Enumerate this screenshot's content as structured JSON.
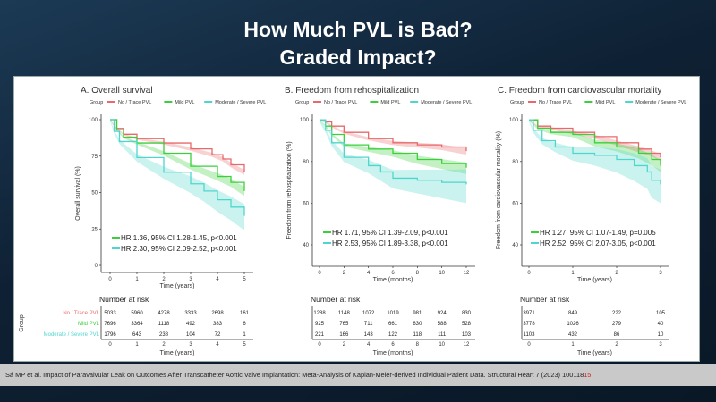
{
  "slide": {
    "title_line1": "How Much PVL is Bad?",
    "title_line2": "Graded Impact?",
    "citation": "Sá MP et al. Impact of Paravalvular Leak on Outcomes After Transcatheter Aortic Valve Implantation: Meta-Analysis of Kaplan-Meier-derived Individual Patient Data. Structural Heart 7 (2023) 100118",
    "citation_red": "15"
  },
  "colors": {
    "no_trace": "#e8696b",
    "mild": "#3ccf3c",
    "moderate_severe": "#4fd6cc"
  },
  "chart_data": [
    {
      "type": "line",
      "title": "A. Overall survival",
      "xlabel": "Time (years)",
      "ylabel": "Overall survival (%)",
      "xlim": [
        0,
        5
      ],
      "ylim": [
        0,
        100
      ],
      "xticks": [
        "0",
        "1",
        "2",
        "3",
        "4",
        "5"
      ],
      "yticks": [
        "0",
        "25",
        "50",
        "75",
        "100"
      ],
      "legend_title": "Group",
      "legend_position": "top",
      "series": [
        {
          "name": "No / Trace PVL",
          "points": [
            [
              0,
              100
            ],
            [
              0.25,
              94
            ],
            [
              0.5,
              90
            ],
            [
              1,
              87
            ],
            [
              2,
              84
            ],
            [
              3,
              80
            ],
            [
              3.8,
              76
            ],
            [
              4.2,
              73
            ],
            [
              4.5,
              69
            ],
            [
              5,
              64
            ]
          ]
        },
        {
          "name": "Mild PVL",
          "points": [
            [
              0,
              100
            ],
            [
              0.25,
              93
            ],
            [
              0.5,
              88
            ],
            [
              1,
              84
            ],
            [
              2,
              77
            ],
            [
              3,
              68
            ],
            [
              4,
              61
            ],
            [
              4.5,
              57
            ],
            [
              5,
              51
            ]
          ]
        },
        {
          "name": "Moderate / Severe PVL",
          "points": [
            [
              0,
              100
            ],
            [
              0.15,
              92
            ],
            [
              0.35,
              85
            ],
            [
              1,
              74
            ],
            [
              2,
              64
            ],
            [
              3,
              56
            ],
            [
              3.5,
              51
            ],
            [
              4,
              45
            ],
            [
              4.5,
              40
            ],
            [
              5,
              34
            ]
          ]
        }
      ],
      "annotations": [
        "HR 1.36, 95% CI 1.28-1.45, p<0.001",
        "HR 2.30, 95% CI 2.09-2.52, p<0.001"
      ],
      "risk_table": {
        "title": "Number at risk",
        "group_label": "Group",
        "xlabel": "Time (years)",
        "rows": [
          {
            "name": "No / Trace PVL",
            "values": [
              "5033",
              "5960",
              "4278",
              "3333",
              "2698",
              "161"
            ]
          },
          {
            "name": "Mild PVL",
            "values": [
              "7696",
              "3364",
              "1118",
              "492",
              "383",
              "6"
            ]
          },
          {
            "name": "Moderate / Severe PVL",
            "values": [
              "1796",
              "643",
              "238",
              "104",
              "72",
              "1"
            ]
          }
        ]
      }
    },
    {
      "type": "line",
      "title": "B. Freedom from rehospitalization",
      "xlabel": "Time (months)",
      "ylabel": "Freedom from rehospitalization (%)",
      "xlim": [
        0,
        12
      ],
      "ylim": [
        30,
        100
      ],
      "xticks": [
        "0",
        "2",
        "4",
        "6",
        "8",
        "10",
        "12"
      ],
      "yticks": [
        "40",
        "60",
        "80",
        "100"
      ],
      "legend_title": "Group",
      "legend_position": "top",
      "series": [
        {
          "name": "No / Trace PVL",
          "points": [
            [
              0,
              100
            ],
            [
              0.5,
              99
            ],
            [
              1,
              97
            ],
            [
              2,
              94
            ],
            [
              4,
              91
            ],
            [
              6,
              89
            ],
            [
              8,
              88
            ],
            [
              10,
              87
            ],
            [
              12,
              85
            ]
          ]
        },
        {
          "name": "Mild PVL",
          "points": [
            [
              0,
              100
            ],
            [
              0.5,
              97
            ],
            [
              1,
              93
            ],
            [
              2,
              88
            ],
            [
              4,
              86
            ],
            [
              6,
              84
            ],
            [
              8,
              81
            ],
            [
              10,
              79
            ],
            [
              12,
              77
            ]
          ]
        },
        {
          "name": "Moderate / Severe PVL",
          "points": [
            [
              0,
              100
            ],
            [
              0.5,
              95
            ],
            [
              1,
              89
            ],
            [
              2,
              82
            ],
            [
              4,
              78
            ],
            [
              5,
              75
            ],
            [
              6,
              72
            ],
            [
              8,
              71
            ],
            [
              10,
              70
            ],
            [
              12,
              69
            ]
          ]
        }
      ],
      "annotations": [
        "HR 1.71, 95% CI 1.39-2.09, p<0.001",
        "HR 2.53, 95% CI 1.89-3.38, p<0.001"
      ],
      "risk_table": {
        "title": "Number at risk",
        "xlabel": "Time (months)",
        "rows": [
          {
            "name": "No / Trace PVL",
            "values": [
              "1288",
              "1148",
              "1072",
              "1019",
              "981",
              "924",
              "830"
            ]
          },
          {
            "name": "Mild PVL",
            "values": [
              "925",
              "765",
              "711",
              "661",
              "630",
              "588",
              "528"
            ]
          },
          {
            "name": "Moderate / Severe PVL",
            "values": [
              "221",
              "166",
              "143",
              "122",
              "118",
              "111",
              "103"
            ]
          }
        ]
      }
    },
    {
      "type": "line",
      "title": "C. Freedom from cardiovascular mortality",
      "xlabel": "Time (years)",
      "ylabel": "Freedom from cardiovascular mortality (%)",
      "xlim": [
        0,
        3
      ],
      "ylim": [
        30,
        100
      ],
      "xticks": [
        "0",
        "1",
        "2",
        "3"
      ],
      "yticks": [
        "40",
        "60",
        "80",
        "100"
      ],
      "legend_title": "Group",
      "legend_position": "top",
      "series": [
        {
          "name": "No / Trace PVL",
          "points": [
            [
              0,
              100
            ],
            [
              0.2,
              97
            ],
            [
              0.5,
              96
            ],
            [
              1,
              94
            ],
            [
              1.5,
              92
            ],
            [
              2,
              89
            ],
            [
              2.5,
              86
            ],
            [
              2.8,
              84
            ],
            [
              3,
              82
            ]
          ]
        },
        {
          "name": "Mild PVL",
          "points": [
            [
              0,
              100
            ],
            [
              0.2,
              96
            ],
            [
              0.5,
              94
            ],
            [
              1,
              93
            ],
            [
              1.5,
              89
            ],
            [
              2,
              87
            ],
            [
              2.5,
              84
            ],
            [
              2.8,
              81
            ],
            [
              3,
              78
            ]
          ]
        },
        {
          "name": "Moderate / Severe PVL",
          "points": [
            [
              0,
              100
            ],
            [
              0.1,
              95
            ],
            [
              0.3,
              90
            ],
            [
              0.6,
              87
            ],
            [
              1,
              84
            ],
            [
              1.5,
              83
            ],
            [
              2,
              81
            ],
            [
              2.4,
              78
            ],
            [
              2.7,
              75
            ],
            [
              2.8,
              71
            ],
            [
              3,
              69
            ]
          ]
        }
      ],
      "annotations": [
        "HR 1.27, 95% CI 1.07-1.49, p=0.005",
        "HR 2.52, 95% CI 2.07-3.05, p<0.001"
      ],
      "risk_table": {
        "title": "Number at risk",
        "xlabel": "Time (years)",
        "rows": [
          {
            "name": "No / Trace PVL",
            "values": [
              "3971",
              "849",
              "222",
              "105"
            ]
          },
          {
            "name": "Mild PVL",
            "values": [
              "3778",
              "1026",
              "279",
              "40"
            ]
          },
          {
            "name": "Moderate / Severe PVL",
            "values": [
              "1103",
              "432",
              "86",
              "10"
            ]
          }
        ]
      }
    }
  ]
}
